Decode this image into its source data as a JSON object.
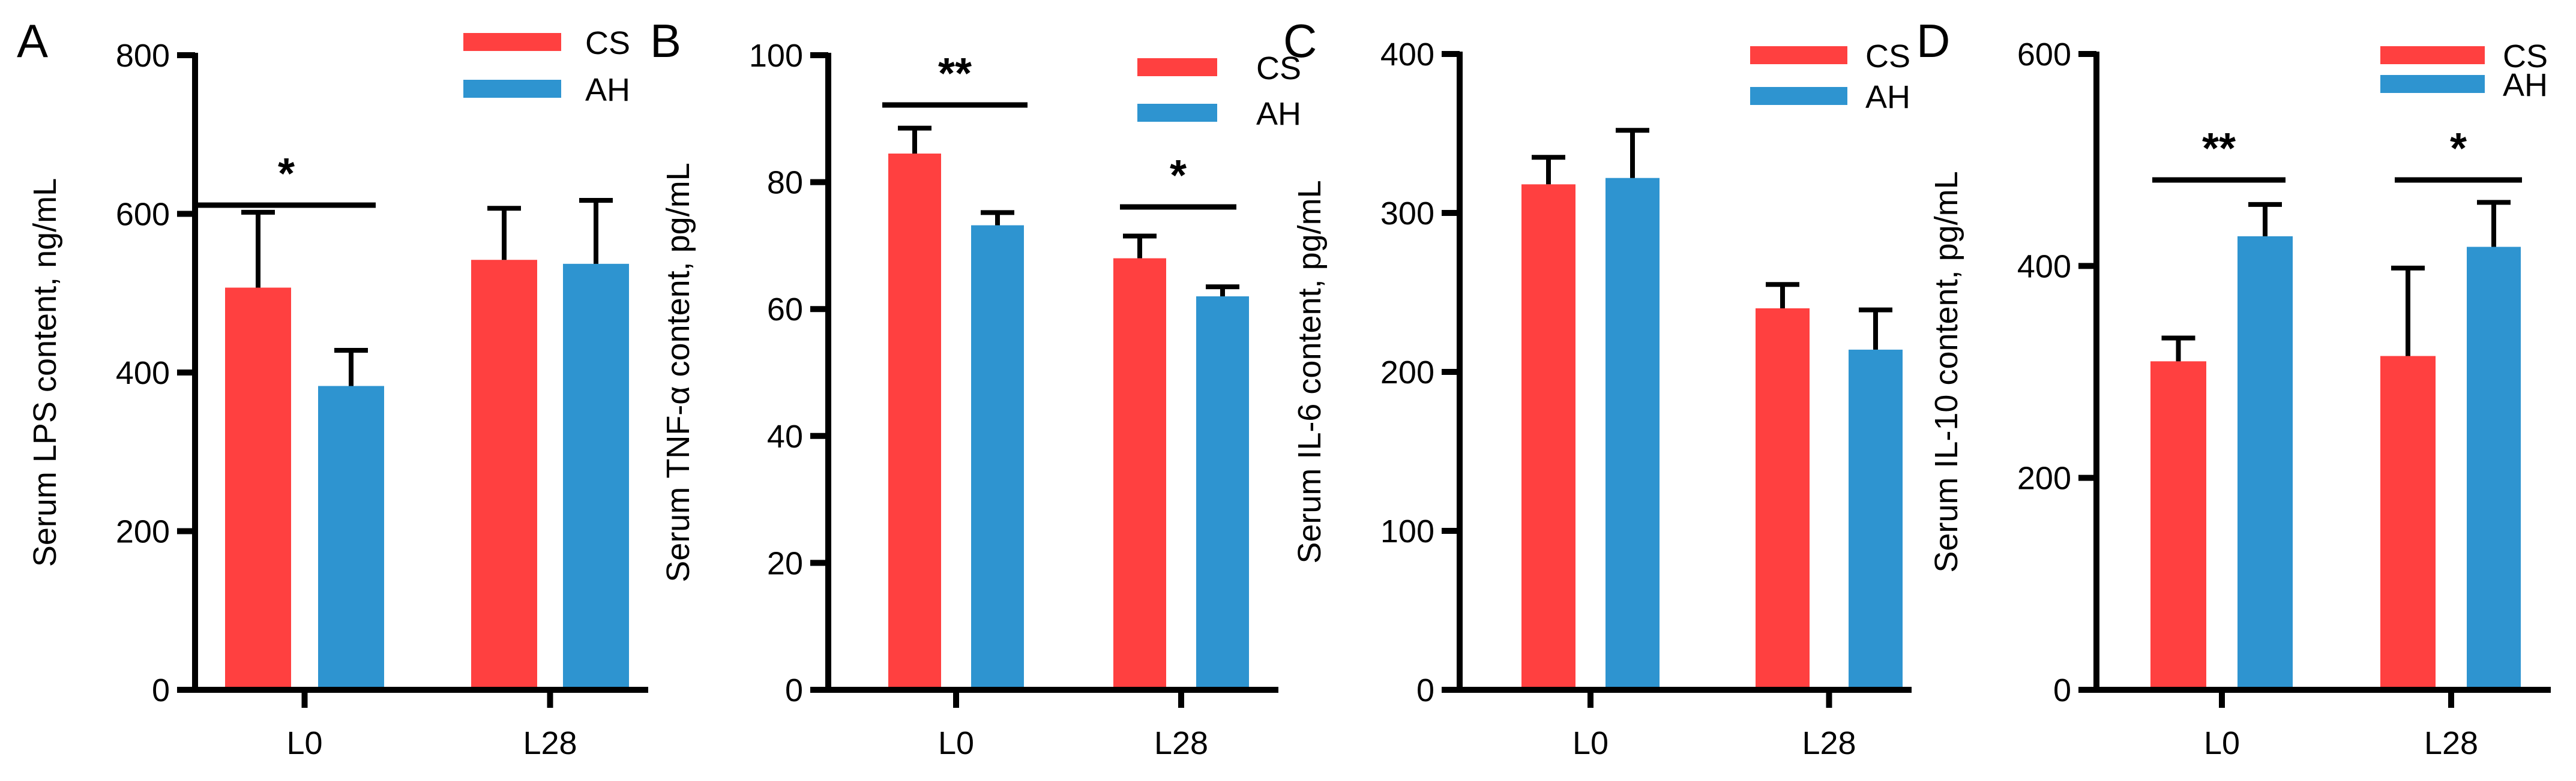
{
  "figure": {
    "caption": ""
  },
  "colors": {
    "CS": "#ff4040",
    "AH": "#2e94d0",
    "axis": "#000000"
  },
  "chart_data": [
    {
      "panel": "A",
      "type": "bar",
      "title": "",
      "xlabel": "",
      "ylabel": "Serum LPS content, ng/mL",
      "ylim": [
        0,
        800
      ],
      "yticks": [
        0,
        200,
        400,
        600,
        800
      ],
      "categories": [
        "L0",
        "L28"
      ],
      "series": [
        {
          "name": "CS",
          "color": "#ff4040",
          "values": [
            507,
            542
          ],
          "errors": [
            95,
            65
          ]
        },
        {
          "name": "AH",
          "color": "#2e94d0",
          "values": [
            383,
            537
          ],
          "errors": [
            45,
            80
          ]
        }
      ],
      "significance": [
        {
          "category": "L0",
          "label": "*"
        }
      ],
      "legend": {
        "position": "top-right",
        "entries": [
          "CS",
          "AH"
        ]
      }
    },
    {
      "panel": "B",
      "type": "bar",
      "title": "",
      "xlabel": "",
      "ylabel": "Serum TNF-α content, pg/mL",
      "ylim": [
        0,
        100
      ],
      "yticks": [
        0,
        20,
        40,
        60,
        80,
        100
      ],
      "categories": [
        "L0",
        "L28"
      ],
      "series": [
        {
          "name": "CS",
          "color": "#ff4040",
          "values": [
            84.5,
            68
          ],
          "errors": [
            4,
            3.5
          ]
        },
        {
          "name": "AH",
          "color": "#2e94d0",
          "values": [
            73.2,
            62
          ],
          "errors": [
            2,
            1.5
          ]
        }
      ],
      "significance": [
        {
          "category": "L0",
          "label": "**"
        },
        {
          "category": "L28",
          "label": "*"
        }
      ],
      "legend": {
        "position": "top-right",
        "entries": [
          "CS",
          "AH"
        ]
      }
    },
    {
      "panel": "C",
      "type": "bar",
      "title": "",
      "xlabel": "",
      "ylabel": "Serum IL-6 content, pg/mL",
      "ylim": [
        0,
        400
      ],
      "yticks": [
        0,
        100,
        200,
        300,
        400
      ],
      "categories": [
        "L0",
        "L28"
      ],
      "series": [
        {
          "name": "CS",
          "color": "#ff4040",
          "values": [
            318,
            240
          ],
          "errors": [
            17,
            15
          ]
        },
        {
          "name": "AH",
          "color": "#2e94d0",
          "values": [
            322,
            214
          ],
          "errors": [
            30,
            25
          ]
        }
      ],
      "significance": [],
      "legend": {
        "position": "top-right",
        "entries": [
          "CS",
          "AH"
        ]
      }
    },
    {
      "panel": "D",
      "type": "bar",
      "title": "",
      "xlabel": "",
      "ylabel": "Serum IL-10 content, pg/mL",
      "ylim": [
        0,
        600
      ],
      "yticks": [
        0,
        200,
        400,
        600
      ],
      "categories": [
        "L0",
        "L28"
      ],
      "series": [
        {
          "name": "CS",
          "color": "#ff4040",
          "values": [
            310,
            315
          ],
          "errors": [
            22,
            83
          ]
        },
        {
          "name": "AH",
          "color": "#2e94d0",
          "values": [
            428,
            418
          ],
          "errors": [
            30,
            42
          ]
        }
      ],
      "significance": [
        {
          "category": "L0",
          "label": "**"
        },
        {
          "category": "L28",
          "label": "*"
        }
      ],
      "legend": {
        "position": "top-right",
        "entries": [
          "CS",
          "AH"
        ]
      }
    }
  ]
}
